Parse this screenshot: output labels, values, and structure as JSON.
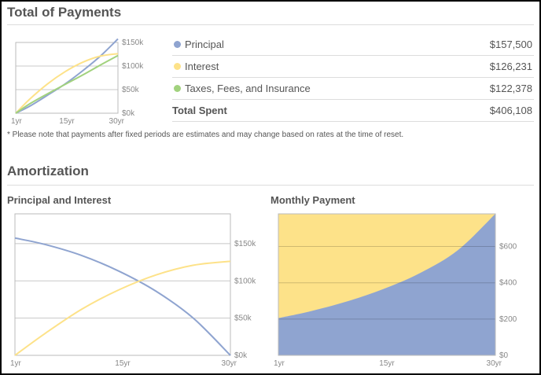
{
  "payments": {
    "title": "Total of Payments",
    "legend": [
      {
        "label": "Principal",
        "amount": "$157,500",
        "color": "#8fa4d0"
      },
      {
        "label": "Interest",
        "amount": "$126,231",
        "color": "#fde289"
      },
      {
        "label": "Taxes, Fees, and Insurance",
        "amount": "$122,378",
        "color": "#a2d27e"
      }
    ],
    "total": {
      "label": "Total Spent",
      "amount": "$406,108"
    },
    "note": "* Please note that payments after fixed periods are estimates and may change based on rates at the time of reset."
  },
  "amortization": {
    "title": "Amortization",
    "left_title": "Principal and Interest",
    "right_title": "Monthly Payment"
  },
  "chart_data": [
    {
      "type": "line",
      "x_ticks": [
        "1yr",
        "15yr",
        "30yr"
      ],
      "y_ticks": [
        "$0k",
        "$50k",
        "$100k",
        "$150k"
      ],
      "x": [
        1,
        5,
        10,
        15,
        20,
        25,
        30
      ],
      "ylim": [
        0,
        150000
      ],
      "series": [
        {
          "name": "Principal",
          "color": "#8fa4d0",
          "values": [
            0,
            15000,
            38000,
            62000,
            90000,
            121000,
            157500
          ]
        },
        {
          "name": "Interest",
          "color": "#fde289",
          "values": [
            0,
            30000,
            62000,
            88000,
            108000,
            121000,
            126231
          ]
        },
        {
          "name": "Taxes, Fees, and Insurance",
          "color": "#a2d27e",
          "values": [
            0,
            20000,
            41000,
            61000,
            81000,
            102000,
            122378
          ]
        }
      ]
    },
    {
      "type": "line",
      "x_ticks": [
        "1yr",
        "15yr",
        "30yr"
      ],
      "y_ticks": [
        "$0k",
        "$50k",
        "$100k",
        "$150k"
      ],
      "x": [
        1,
        5,
        10,
        15,
        20,
        25,
        30
      ],
      "ylim": [
        0,
        190000
      ],
      "series": [
        {
          "name": "Principal",
          "color": "#8fa4d0",
          "values": [
            157500,
            149000,
            134000,
            113000,
            86000,
            50000,
            0
          ]
        },
        {
          "name": "Interest",
          "color": "#fde289",
          "values": [
            0,
            29000,
            62000,
            88000,
            108000,
            121000,
            126231
          ]
        }
      ]
    },
    {
      "type": "area",
      "x_ticks": [
        "1yr",
        "15yr",
        "30yr"
      ],
      "y_ticks": [
        "$0",
        "$200",
        "$400",
        "$600"
      ],
      "x": [
        1,
        5,
        10,
        15,
        20,
        25,
        30
      ],
      "ylim": [
        0,
        780
      ],
      "total": 780,
      "series": [
        {
          "name": "Principal",
          "color": "#8fa4d0",
          "values": [
            205,
            240,
            295,
            365,
            455,
            580,
            780
          ]
        },
        {
          "name": "Interest",
          "color": "#fde289",
          "values": [
            575,
            540,
            485,
            415,
            325,
            200,
            0
          ]
        }
      ]
    }
  ]
}
